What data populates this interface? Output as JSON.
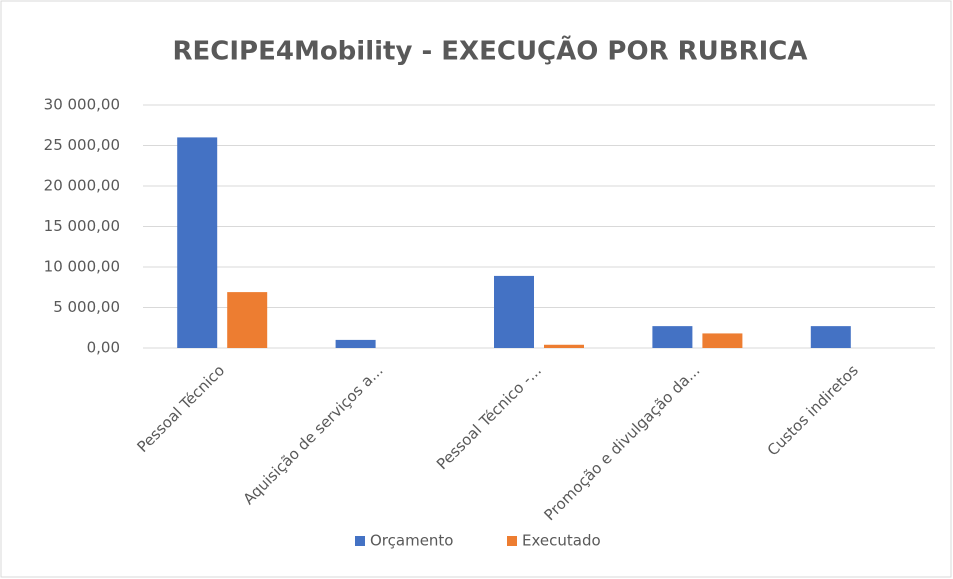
{
  "chart_data": {
    "type": "bar",
    "title": "RECIPE4Mobility - EXECUÇÃO POR RUBRICA",
    "categories": [
      "Pessoal Técnico",
      "Aquisição de serviços a...",
      "Pessoal Técnico -...",
      "Promoção e divulgação da...",
      "Custos indiretos"
    ],
    "series": [
      {
        "name": "Orçamento",
        "color": "#4472c4",
        "values": [
          26000,
          1000,
          8900,
          2700,
          2700
        ]
      },
      {
        "name": "Executado",
        "color": "#ed7d31",
        "values": [
          6900,
          0,
          400,
          1800,
          0
        ]
      }
    ],
    "ylim": [
      0,
      30000
    ],
    "yticks": [
      {
        "value": 0,
        "label": "0,00"
      },
      {
        "value": 5000,
        "label": "5 000,00"
      },
      {
        "value": 10000,
        "label": "10 000,00"
      },
      {
        "value": 15000,
        "label": "15 000,00"
      },
      {
        "value": 20000,
        "label": "20 000,00"
      },
      {
        "value": 25000,
        "label": "25 000,00"
      },
      {
        "value": 30000,
        "label": "30 000,00"
      }
    ],
    "grid": true,
    "legend": "bottom"
  }
}
